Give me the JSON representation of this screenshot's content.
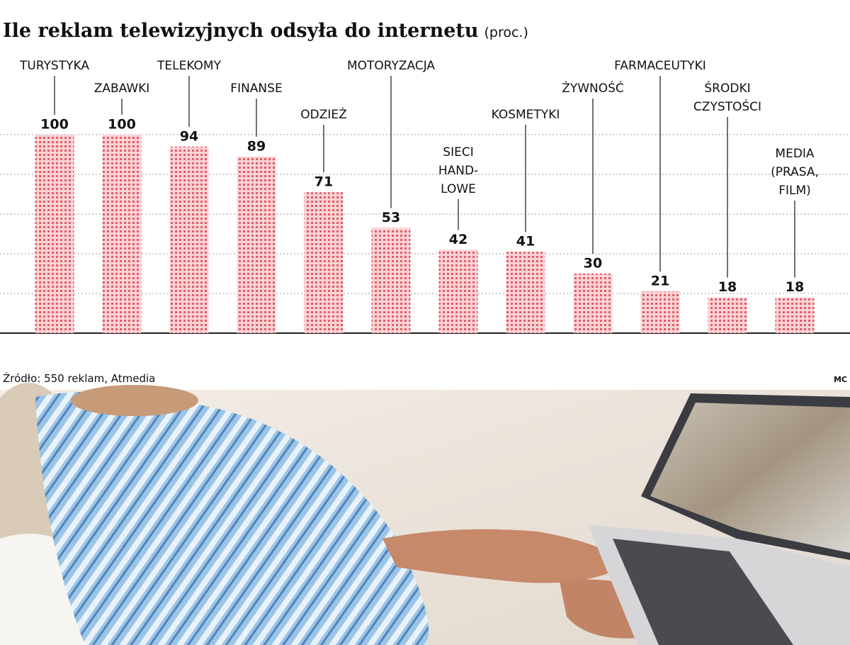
{
  "chart_data": {
    "type": "bar",
    "title": "Ile reklam telewizyjnych odsyła do internetu",
    "subtitle": "(proc.)",
    "categories": [
      "TURYSTYKA",
      "ZABAWKI",
      "TELEKOMY",
      "FINANSE",
      "ODZIEŻ",
      "MOTORYZACJA",
      "SIECI\nHAND-\nLOWE",
      "KOSMETYKI",
      "ŻYWNOŚĆ",
      "FARMACEUTYKI",
      "ŚRODKI\nCZYSTOŚCI",
      "MEDIA\n(PRASA,\nFILM)"
    ],
    "values": [
      100,
      100,
      94,
      89,
      71,
      53,
      42,
      41,
      30,
      21,
      18,
      18
    ],
    "color": "#e0505a",
    "ylim": [
      0,
      100
    ],
    "yticks": [
      0,
      20,
      40,
      60,
      80,
      100
    ],
    "grid": true,
    "source": "Źródło: 550 reklam, Atmedia",
    "credit": "MC"
  }
}
